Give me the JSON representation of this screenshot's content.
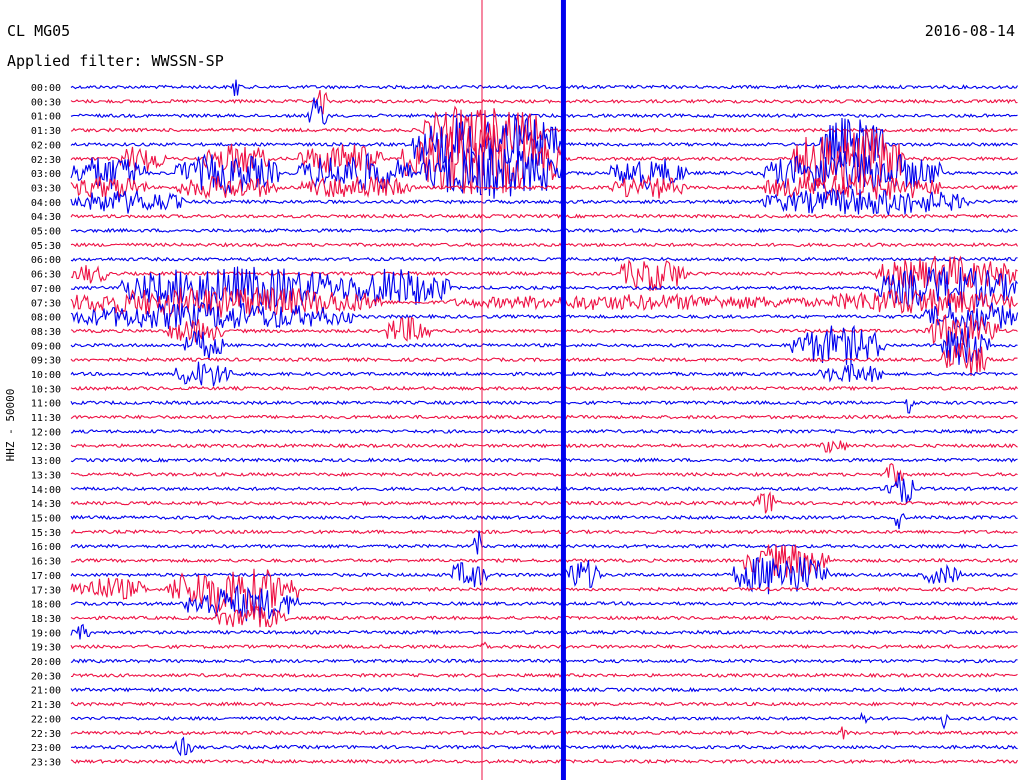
{
  "header": {
    "station": "CL MG05",
    "date": "2016-08-14",
    "filter": "Applied filter: WWSSN-SP"
  },
  "chart_data": {
    "type": "helicorder",
    "ylabel": "HHZ - 50000",
    "colors": {
      "even_row": "#0000ee",
      "odd_row": "#ee1144",
      "background": "#ffffff",
      "text": "#000000"
    },
    "rows": [
      "00:00",
      "00:30",
      "01:00",
      "01:30",
      "02:00",
      "02:30",
      "03:00",
      "03:30",
      "04:00",
      "04:30",
      "05:00",
      "05:30",
      "06:00",
      "06:30",
      "07:00",
      "07:30",
      "08:00",
      "08:30",
      "09:00",
      "09:30",
      "10:00",
      "10:30",
      "11:00",
      "11:30",
      "12:00",
      "12:30",
      "13:00",
      "13:30",
      "14:00",
      "14:30",
      "15:00",
      "15:30",
      "16:00",
      "16:30",
      "17:00",
      "17:30",
      "18:00",
      "18:30",
      "19:00",
      "19:30",
      "20:00",
      "20:30",
      "21:00",
      "21:30",
      "22:00",
      "22:30",
      "23:00",
      "23:30"
    ],
    "x_minutes": [
      0,
      30
    ],
    "bursts": [
      {
        "row": 0,
        "start": 0.17,
        "end": 0.18,
        "amp": 14
      },
      {
        "row": 1,
        "start": 0.26,
        "end": 0.27,
        "amp": 16
      },
      {
        "row": 2,
        "start": 0.25,
        "end": 0.27,
        "amp": 20
      },
      {
        "row": 3,
        "start": 0.37,
        "end": 0.5,
        "amp": 26
      },
      {
        "row": 4,
        "start": 0.36,
        "end": 0.52,
        "amp": 32
      },
      {
        "row": 4,
        "start": 0.79,
        "end": 0.86,
        "amp": 28
      },
      {
        "row": 5,
        "start": 0.35,
        "end": 0.52,
        "amp": 36
      },
      {
        "row": 5,
        "start": 0.76,
        "end": 0.88,
        "amp": 34
      },
      {
        "row": 5,
        "start": 0.05,
        "end": 0.1,
        "amp": 14
      },
      {
        "row": 5,
        "start": 0.14,
        "end": 0.21,
        "amp": 16
      },
      {
        "row": 5,
        "start": 0.24,
        "end": 0.33,
        "amp": 16
      },
      {
        "row": 6,
        "start": 0.0,
        "end": 0.08,
        "amp": 18
      },
      {
        "row": 6,
        "start": 0.11,
        "end": 0.22,
        "amp": 20
      },
      {
        "row": 6,
        "start": 0.24,
        "end": 0.36,
        "amp": 20
      },
      {
        "row": 6,
        "start": 0.37,
        "end": 0.52,
        "amp": 26
      },
      {
        "row": 6,
        "start": 0.57,
        "end": 0.65,
        "amp": 16
      },
      {
        "row": 6,
        "start": 0.73,
        "end": 0.92,
        "amp": 22
      },
      {
        "row": 7,
        "start": 0.0,
        "end": 0.08,
        "amp": 12
      },
      {
        "row": 7,
        "start": 0.11,
        "end": 0.22,
        "amp": 12
      },
      {
        "row": 7,
        "start": 0.24,
        "end": 0.36,
        "amp": 12
      },
      {
        "row": 7,
        "start": 0.57,
        "end": 0.65,
        "amp": 12
      },
      {
        "row": 7,
        "start": 0.73,
        "end": 0.92,
        "amp": 14
      },
      {
        "row": 8,
        "start": 0.0,
        "end": 0.12,
        "amp": 12
      },
      {
        "row": 8,
        "start": 0.73,
        "end": 0.95,
        "amp": 14
      },
      {
        "row": 13,
        "start": 0.0,
        "end": 0.04,
        "amp": 10
      },
      {
        "row": 13,
        "start": 0.58,
        "end": 0.65,
        "amp": 18
      },
      {
        "row": 13,
        "start": 0.85,
        "end": 1.0,
        "amp": 18
      },
      {
        "row": 14,
        "start": 0.05,
        "end": 0.3,
        "amp": 22
      },
      {
        "row": 14,
        "start": 0.28,
        "end": 0.4,
        "amp": 20
      },
      {
        "row": 14,
        "start": 0.85,
        "end": 1.0,
        "amp": 22
      },
      {
        "row": 15,
        "start": 0.0,
        "end": 0.33,
        "amp": 16
      },
      {
        "row": 15,
        "start": 0.4,
        "end": 0.8,
        "amp": 8
      },
      {
        "row": 15,
        "start": 0.8,
        "end": 1.0,
        "amp": 14
      },
      {
        "row": 16,
        "start": 0.0,
        "end": 0.3,
        "amp": 14
      },
      {
        "row": 16,
        "start": 0.9,
        "end": 1.0,
        "amp": 16
      },
      {
        "row": 17,
        "start": 0.1,
        "end": 0.16,
        "amp": 12
      },
      {
        "row": 17,
        "start": 0.33,
        "end": 0.38,
        "amp": 14
      },
      {
        "row": 17,
        "start": 0.9,
        "end": 0.98,
        "amp": 18
      },
      {
        "row": 18,
        "start": 0.12,
        "end": 0.16,
        "amp": 16
      },
      {
        "row": 18,
        "start": 0.76,
        "end": 0.86,
        "amp": 20
      },
      {
        "row": 18,
        "start": 0.92,
        "end": 0.97,
        "amp": 22
      },
      {
        "row": 19,
        "start": 0.92,
        "end": 0.97,
        "amp": 18
      },
      {
        "row": 20,
        "start": 0.11,
        "end": 0.17,
        "amp": 14
      },
      {
        "row": 20,
        "start": 0.79,
        "end": 0.86,
        "amp": 10
      },
      {
        "row": 25,
        "start": 0.79,
        "end": 0.82,
        "amp": 8
      },
      {
        "row": 27,
        "start": 0.86,
        "end": 0.88,
        "amp": 12
      },
      {
        "row": 28,
        "start": 0.86,
        "end": 0.89,
        "amp": 18
      },
      {
        "row": 29,
        "start": 0.72,
        "end": 0.75,
        "amp": 12
      },
      {
        "row": 33,
        "start": 0.71,
        "end": 0.8,
        "amp": 18
      },
      {
        "row": 34,
        "start": 0.4,
        "end": 0.44,
        "amp": 14
      },
      {
        "row": 34,
        "start": 0.52,
        "end": 0.56,
        "amp": 16
      },
      {
        "row": 34,
        "start": 0.7,
        "end": 0.8,
        "amp": 22
      },
      {
        "row": 34,
        "start": 0.9,
        "end": 0.94,
        "amp": 10
      },
      {
        "row": 35,
        "start": 0.0,
        "end": 0.08,
        "amp": 12
      },
      {
        "row": 35,
        "start": 0.1,
        "end": 0.24,
        "amp": 24
      },
      {
        "row": 36,
        "start": 0.12,
        "end": 0.24,
        "amp": 18
      },
      {
        "row": 37,
        "start": 0.15,
        "end": 0.23,
        "amp": 12
      },
      {
        "row": 38,
        "start": 0.0,
        "end": 0.02,
        "amp": 8
      },
      {
        "row": 46,
        "start": 0.11,
        "end": 0.13,
        "amp": 10
      }
    ],
    "spikes": [
      {
        "row": 32,
        "x": 0.43,
        "amp": 22
      },
      {
        "row": 39,
        "x": 0.435,
        "amp": 16
      },
      {
        "row": 44,
        "x": 0.836,
        "amp": 14
      },
      {
        "row": 44,
        "x": 0.924,
        "amp": 16
      },
      {
        "row": 45,
        "x": 0.816,
        "amp": 10
      },
      {
        "row": 30,
        "x": 0.874,
        "amp": 26
      },
      {
        "row": 22,
        "x": 0.887,
        "amp": 22
      }
    ],
    "vertical_lines": [
      {
        "x": 0.434,
        "color": "#ee1144",
        "width": 1
      },
      {
        "x": 0.52,
        "color": "#0000ee",
        "width": 5
      }
    ]
  }
}
